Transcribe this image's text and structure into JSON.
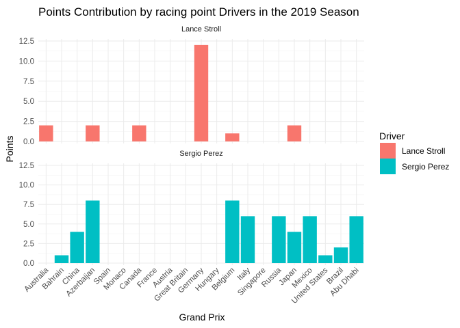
{
  "chart_data": {
    "type": "bar",
    "title": "Points Contribution by racing point Drivers in the 2019 Season",
    "xlabel": "Grand Prix",
    "ylabel": "Points",
    "legend_title": "Driver",
    "legend_position": "right",
    "grid": true,
    "ylim": [
      0,
      12.5
    ],
    "yticks": [
      0.0,
      2.5,
      5.0,
      7.5,
      10.0,
      12.5
    ],
    "ytick_labels": [
      "0.0",
      "2.5",
      "5.0",
      "7.5",
      "10.0",
      "12.5"
    ],
    "categories": [
      "Australia",
      "Bahrain",
      "China",
      "Azerbaijan",
      "Spain",
      "Monaco",
      "Canada",
      "France",
      "Austria",
      "Great Britain",
      "Germany",
      "Hungary",
      "Belgium",
      "Italy",
      "Singapore",
      "Russia",
      "Japan",
      "Mexico",
      "United States",
      "Brazil",
      "Abu Dhabi"
    ],
    "series": [
      {
        "name": "Lance Stroll",
        "color": "#F8766D",
        "values": [
          2,
          0,
          0,
          2,
          0,
          0,
          2,
          0,
          0,
          0,
          12,
          0,
          1,
          0,
          0,
          0,
          2,
          0,
          0,
          0,
          0
        ]
      },
      {
        "name": "Sergio Perez",
        "color": "#00BFC4",
        "values": [
          0,
          1,
          4,
          8,
          0,
          0,
          0,
          0,
          0,
          0,
          0,
          0,
          8,
          6,
          0,
          6,
          4,
          6,
          1,
          2,
          6
        ]
      }
    ]
  }
}
